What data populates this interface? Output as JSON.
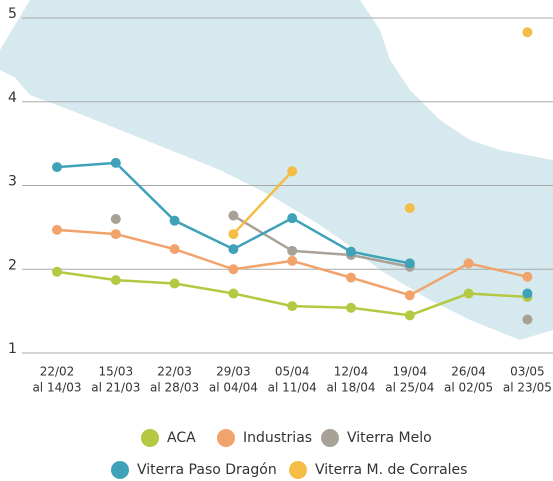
{
  "chart_data": {
    "type": "line",
    "categories": [
      [
        "22/02",
        "al 14/03"
      ],
      [
        "15/03",
        "al 21/03"
      ],
      [
        "22/03",
        "al 28/03"
      ],
      [
        "29/03",
        "al 04/04"
      ],
      [
        "05/04",
        "al 11/04"
      ],
      [
        "12/04",
        "al 18/04"
      ],
      [
        "19/04",
        "al 25/04"
      ],
      [
        "26/04",
        "al 02/05"
      ],
      [
        "03/05",
        "al 23/05"
      ]
    ],
    "series": [
      {
        "name": "ACA",
        "color": "#b5c842",
        "values": [
          1.97,
          1.87,
          1.83,
          1.71,
          1.56,
          1.54,
          1.45,
          1.71,
          1.67
        ]
      },
      {
        "name": "Industrias",
        "color": "#f2a36c",
        "values": [
          2.47,
          2.42,
          2.24,
          2.0,
          2.1,
          1.9,
          1.69,
          2.07,
          1.91
        ]
      },
      {
        "name": "Viterra Melo",
        "color": "#a8a196",
        "values": [
          null,
          2.6,
          null,
          2.64,
          2.22,
          2.17,
          2.03,
          null,
          1.4
        ]
      },
      {
        "name": "Viterra Paso Dragón",
        "color": "#3fa2b8",
        "values": [
          3.22,
          3.27,
          2.58,
          2.24,
          2.61,
          2.21,
          2.07,
          null,
          1.71
        ]
      },
      {
        "name": "Viterra M. de Corrales",
        "color": "#f5bd45",
        "values": [
          null,
          null,
          null,
          2.42,
          3.17,
          null,
          2.73,
          null,
          4.83
        ]
      }
    ],
    "ylim": [
      1,
      5
    ],
    "yticks": [
      1,
      2,
      3,
      4,
      5
    ],
    "grid": true
  }
}
